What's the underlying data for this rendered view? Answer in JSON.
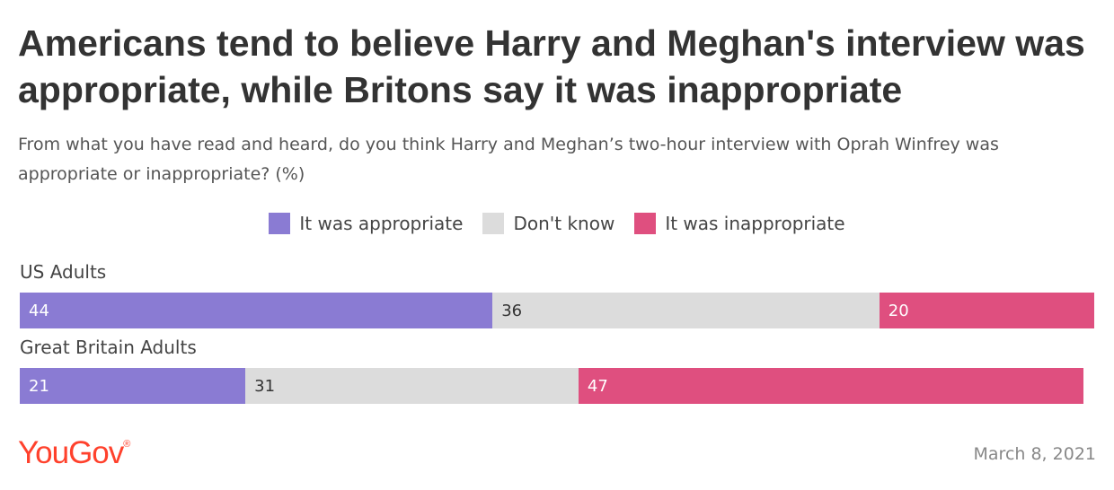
{
  "header": {
    "title": "Americans tend to believe Harry and Meghan's interview was appropriate, while Britons say it was inappropriate",
    "subtitle": "From what you have read and heard, do you think Harry and Meghan’s two-hour interview with Oprah Winfrey was appropriate or inappropriate? (%)"
  },
  "footer": {
    "brand": "YouGov",
    "brand_mark": "®",
    "date": "March 8, 2021"
  },
  "chart_data": {
    "type": "bar",
    "orientation": "horizontal",
    "stacked": true,
    "title": "Americans tend to believe Harry and Meghan's interview was appropriate, while Britons say it was inappropriate",
    "subtitle": "From what you have read and heard, do you think Harry and Meghan’s two-hour interview with Oprah Winfrey was appropriate or inappropriate? (%)",
    "categories": [
      "US Adults",
      "Great Britain Adults"
    ],
    "series": [
      {
        "name": "It was appropriate",
        "values": [
          44,
          21
        ],
        "color": "#8a7bd3",
        "label_color": "#ffffff"
      },
      {
        "name": "Don't know",
        "values": [
          36,
          31
        ],
        "color": "#dcdcdc",
        "label_color": "#333333"
      },
      {
        "name": "It was inappropriate",
        "values": [
          20,
          47
        ],
        "color": "#df4f7f",
        "label_color": "#ffffff"
      }
    ],
    "xlim": [
      0,
      100
    ],
    "legend_position": "top-center",
    "grid": false
  }
}
